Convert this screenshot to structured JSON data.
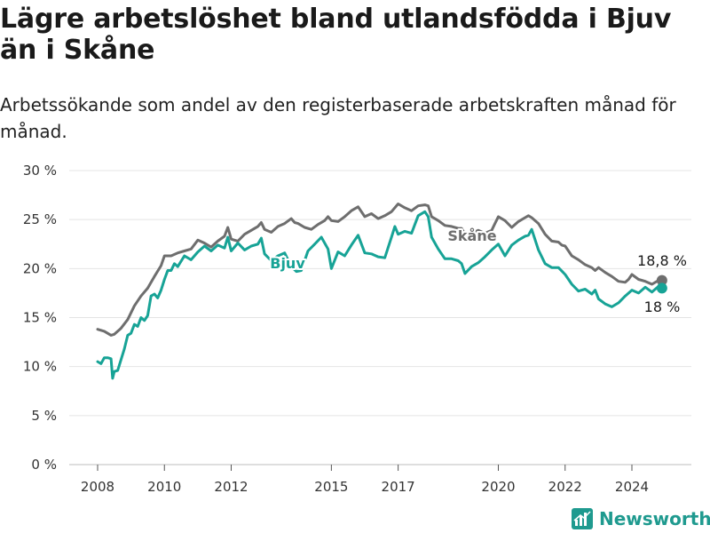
{
  "title": "Lägre arbetslöshet bland utlandsfödda i Bjuv än i Skåne",
  "subtitle": "Arbetssökande som andel av den registerbaserade arbetskraften månad för månad.",
  "brand": {
    "name": "Newsworthy",
    "icon": "bar-chart-logo-icon",
    "color": "#1f9a8f"
  },
  "chart_data": {
    "type": "line",
    "title": "Lägre arbetslöshet bland utlandsfödda i Bjuv än i Skåne",
    "subtitle": "Arbetssökande som andel av den registerbaserade arbetskraften månad för månad.",
    "xlabel": "",
    "ylabel": "",
    "x_unit": "year",
    "xlim": [
      2007.6,
      2026.5
    ],
    "ylim": [
      0,
      30
    ],
    "yticks": [
      0,
      5,
      10,
      15,
      20,
      25,
      30
    ],
    "ytick_labels": [
      "0 %",
      "5 %",
      "10 %",
      "15 %",
      "20 %",
      "25 %",
      "30 %"
    ],
    "xticks": [
      2008,
      2010,
      2012,
      2015,
      2017,
      2020,
      2022,
      2024
    ],
    "xtick_labels": [
      "2008",
      "2010",
      "2012",
      "2015",
      "2017",
      "2020",
      "2022",
      "2024"
    ],
    "grid": true,
    "legend": "direct labels",
    "series": [
      {
        "name": "Skåne",
        "color": "#6e6e6e",
        "end_label": "18,8 %",
        "x": [
          2008.0,
          2008.2,
          2008.4,
          2008.5,
          2008.7,
          2008.9,
          2009.1,
          2009.3,
          2009.5,
          2009.7,
          2009.9,
          2010.0,
          2010.2,
          2010.4,
          2010.6,
          2010.8,
          2011.0,
          2011.2,
          2011.4,
          2011.6,
          2011.8,
          2011.9,
          2012.0,
          2012.2,
          2012.4,
          2012.6,
          2012.8,
          2012.9,
          2013.0,
          2013.2,
          2013.4,
          2013.6,
          2013.8,
          2013.9,
          2014.0,
          2014.2,
          2014.4,
          2014.6,
          2014.8,
          2014.9,
          2015.0,
          2015.2,
          2015.4,
          2015.6,
          2015.8,
          2016.0,
          2016.2,
          2016.4,
          2016.6,
          2016.8,
          2017.0,
          2017.2,
          2017.4,
          2017.6,
          2017.8,
          2017.9,
          2018.0,
          2018.2,
          2018.4,
          2018.6,
          2018.8,
          2018.9,
          2019.0,
          2019.2,
          2019.4,
          2019.6,
          2019.8,
          2019.9,
          2020.0,
          2020.2,
          2020.4,
          2020.6,
          2020.8,
          2020.9,
          2021.0,
          2021.2,
          2021.4,
          2021.6,
          2021.8,
          2021.9,
          2022.0,
          2022.2,
          2022.4,
          2022.6,
          2022.8,
          2022.9,
          2023.0,
          2023.2,
          2023.4,
          2023.6,
          2023.8,
          2023.9,
          2024.0,
          2024.2,
          2024.4,
          2024.6,
          2024.8,
          2024.9
        ],
        "values": [
          13.8,
          13.6,
          13.2,
          13.3,
          13.9,
          14.8,
          16.2,
          17.2,
          18.0,
          19.2,
          20.3,
          21.3,
          21.3,
          21.6,
          21.8,
          22.0,
          22.9,
          22.6,
          22.2,
          22.8,
          23.3,
          24.2,
          23.0,
          22.8,
          23.5,
          23.9,
          24.3,
          24.7,
          24.0,
          23.7,
          24.3,
          24.6,
          25.1,
          24.7,
          24.6,
          24.2,
          24.0,
          24.5,
          24.9,
          25.3,
          24.9,
          24.8,
          25.3,
          25.9,
          26.3,
          25.3,
          25.6,
          25.1,
          25.4,
          25.8,
          26.6,
          26.2,
          25.9,
          26.4,
          26.5,
          26.4,
          25.3,
          24.9,
          24.4,
          24.3,
          24.1,
          24.1,
          23.5,
          23.6,
          23.9,
          23.6,
          23.9,
          24.6,
          25.3,
          24.9,
          24.2,
          24.8,
          25.2,
          25.4,
          25.2,
          24.6,
          23.5,
          22.8,
          22.7,
          22.4,
          22.3,
          21.3,
          20.9,
          20.4,
          20.1,
          19.8,
          20.1,
          19.6,
          19.2,
          18.7,
          18.6,
          18.9,
          19.4,
          18.9,
          18.7,
          18.4,
          18.8,
          18.8
        ]
      },
      {
        "name": "Bjuv",
        "color": "#17a396",
        "end_label": "18 %",
        "x": [
          2008.0,
          2008.1,
          2008.2,
          2008.3,
          2008.4,
          2008.45,
          2008.5,
          2008.6,
          2008.8,
          2008.9,
          2009.0,
          2009.1,
          2009.2,
          2009.3,
          2009.4,
          2009.5,
          2009.6,
          2009.7,
          2009.8,
          2009.9,
          2010.0,
          2010.1,
          2010.2,
          2010.3,
          2010.4,
          2010.6,
          2010.8,
          2011.0,
          2011.2,
          2011.4,
          2011.6,
          2011.8,
          2011.9,
          2012.0,
          2012.2,
          2012.4,
          2012.6,
          2012.8,
          2012.9,
          2013.0,
          2013.2,
          2013.4,
          2013.6,
          2013.8,
          2013.95,
          2014.1,
          2014.3,
          2014.5,
          2014.7,
          2014.9,
          2015.0,
          2015.2,
          2015.4,
          2015.6,
          2015.8,
          2016.0,
          2016.2,
          2016.4,
          2016.6,
          2016.8,
          2016.9,
          2017.0,
          2017.2,
          2017.4,
          2017.6,
          2017.8,
          2017.9,
          2018.0,
          2018.2,
          2018.4,
          2018.6,
          2018.8,
          2018.9,
          2019.0,
          2019.2,
          2019.4,
          2019.6,
          2019.8,
          2020.0,
          2020.2,
          2020.4,
          2020.6,
          2020.8,
          2020.9,
          2021.0,
          2021.2,
          2021.4,
          2021.6,
          2021.8,
          2022.0,
          2022.2,
          2022.4,
          2022.6,
          2022.8,
          2022.9,
          2023.0,
          2023.2,
          2023.4,
          2023.6,
          2023.8,
          2024.0,
          2024.2,
          2024.4,
          2024.6,
          2024.8,
          2024.9
        ],
        "values": [
          10.5,
          10.3,
          10.9,
          10.9,
          10.8,
          8.8,
          9.5,
          9.6,
          11.8,
          13.2,
          13.4,
          14.3,
          14.1,
          15.0,
          14.7,
          15.2,
          17.2,
          17.4,
          17.0,
          17.8,
          18.9,
          19.8,
          19.8,
          20.5,
          20.2,
          21.3,
          20.9,
          21.7,
          22.3,
          21.8,
          22.4,
          22.1,
          23.2,
          21.8,
          22.6,
          21.9,
          22.3,
          22.5,
          23.1,
          21.5,
          20.8,
          21.3,
          21.6,
          20.2,
          19.7,
          19.8,
          21.8,
          22.5,
          23.2,
          22.0,
          20.0,
          21.7,
          21.3,
          22.4,
          23.4,
          21.6,
          21.5,
          21.2,
          21.1,
          23.2,
          24.3,
          23.5,
          23.8,
          23.6,
          25.4,
          25.8,
          25.3,
          23.2,
          22.0,
          21.0,
          21.0,
          20.8,
          20.5,
          19.5,
          20.2,
          20.6,
          21.2,
          21.9,
          22.5,
          21.3,
          22.4,
          22.9,
          23.3,
          23.4,
          24.0,
          21.9,
          20.5,
          20.1,
          20.1,
          19.4,
          18.4,
          17.7,
          17.9,
          17.4,
          17.8,
          16.9,
          16.4,
          16.1,
          16.5,
          17.2,
          17.8,
          17.5,
          18.1,
          17.6,
          18.2,
          18.0
        ]
      }
    ]
  }
}
